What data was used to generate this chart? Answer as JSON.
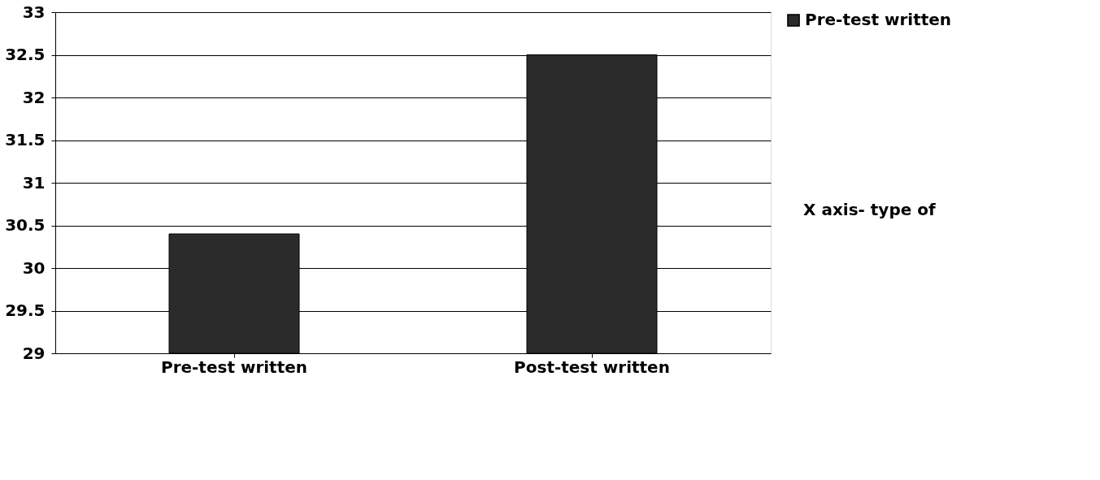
{
  "chart_data": {
    "type": "bar",
    "categories": [
      "Pre-test written",
      "Post-test written"
    ],
    "series": [
      {
        "name": "Pre-test written",
        "color": "#2b2b2b",
        "values": [
          30.4,
          32.5
        ]
      }
    ],
    "ylim": [
      29,
      33
    ],
    "yticks": [
      29,
      29.5,
      30,
      30.5,
      31,
      31.5,
      32,
      32.5,
      33
    ],
    "grid": "y",
    "legend": "right",
    "annotations": [
      "X axis- type of"
    ]
  }
}
